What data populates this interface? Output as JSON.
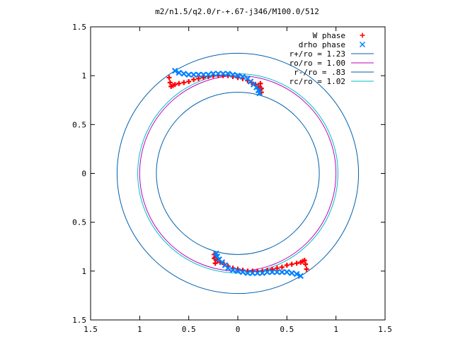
{
  "chart_data": {
    "type": "scatter",
    "title": "m2/n1.5/q2.0/r-+.67-j346/M100.0/512",
    "xlabel": "",
    "ylabel": "",
    "xlim": [
      -1.5,
      1.5
    ],
    "ylim": [
      -1.5,
      1.5
    ],
    "x_ticks": [
      -1.5,
      -1,
      -0.5,
      0,
      0.5,
      1,
      1.5
    ],
    "x_tick_labels": [
      "1.5",
      "1",
      "0.5",
      "0",
      "0.5",
      "1",
      "1.5"
    ],
    "y_ticks": [
      1.5,
      1,
      0.5,
      0,
      -0.5,
      -1,
      -1.5
    ],
    "y_tick_labels": [
      "1.5",
      "1",
      "0.5",
      "0",
      "0.5",
      "1",
      "1.5"
    ],
    "grid": false,
    "legend_position": "top-right",
    "series": [
      {
        "name": "W phase",
        "kind": "points",
        "marker": "plus",
        "color": "#ff0000",
        "x": [
          -0.7,
          -0.69,
          -0.68,
          -0.66,
          -0.64,
          -0.6,
          -0.55,
          -0.5,
          -0.45,
          -0.4,
          -0.35,
          -0.3,
          -0.25,
          -0.2,
          -0.15,
          -0.1,
          -0.05,
          0.0,
          0.05,
          0.1,
          0.14,
          0.18,
          0.21,
          0.23,
          0.24,
          0.24,
          0.23,
          0.7,
          0.69,
          0.68,
          0.66,
          0.64,
          0.6,
          0.55,
          0.5,
          0.45,
          0.4,
          0.35,
          0.3,
          0.25,
          0.2,
          0.15,
          0.1,
          0.05,
          0.0,
          -0.05,
          -0.1,
          -0.14,
          -0.18,
          -0.21,
          -0.23,
          -0.24,
          -0.24,
          -0.23
        ],
        "y": [
          0.98,
          0.93,
          0.89,
          0.9,
          0.91,
          0.92,
          0.93,
          0.94,
          0.96,
          0.97,
          0.98,
          0.99,
          1.0,
          1.0,
          1.0,
          1.0,
          0.99,
          0.98,
          0.97,
          0.95,
          0.93,
          0.91,
          0.89,
          0.86,
          0.83,
          0.87,
          0.92,
          -0.98,
          -0.93,
          -0.89,
          -0.9,
          -0.91,
          -0.92,
          -0.93,
          -0.94,
          -0.96,
          -0.97,
          -0.98,
          -0.99,
          -1.0,
          -1.0,
          -1.0,
          -1.0,
          -0.99,
          -0.98,
          -0.97,
          -0.95,
          -0.93,
          -0.91,
          -0.89,
          -0.86,
          -0.83,
          -0.87,
          -0.92
        ]
      },
      {
        "name": "drho phase",
        "kind": "points",
        "marker": "cross",
        "color": "#0080ff",
        "x": [
          -0.64,
          -0.6,
          -0.55,
          -0.5,
          -0.45,
          -0.4,
          -0.35,
          -0.3,
          -0.25,
          -0.2,
          -0.15,
          -0.1,
          -0.05,
          0.0,
          0.05,
          0.1,
          0.13,
          0.16,
          0.19,
          0.21,
          0.22,
          0.64,
          0.6,
          0.55,
          0.5,
          0.45,
          0.4,
          0.35,
          0.3,
          0.25,
          0.2,
          0.15,
          0.1,
          0.05,
          0.0,
          -0.05,
          -0.1,
          -0.13,
          -0.16,
          -0.19,
          -0.21,
          -0.22
        ],
        "y": [
          1.05,
          1.03,
          1.02,
          1.01,
          1.01,
          1.01,
          1.01,
          1.01,
          1.02,
          1.02,
          1.02,
          1.02,
          1.01,
          1.0,
          0.99,
          0.97,
          0.94,
          0.91,
          0.88,
          0.85,
          0.82,
          -1.05,
          -1.03,
          -1.02,
          -1.01,
          -1.01,
          -1.01,
          -1.01,
          -1.01,
          -1.02,
          -1.02,
          -1.02,
          -1.02,
          -1.01,
          -1.0,
          -0.99,
          -0.97,
          -0.94,
          -0.91,
          -0.88,
          -0.85,
          -0.82
        ]
      },
      {
        "name": "r+/ro = 1.23",
        "kind": "circle",
        "radius": 1.23,
        "color": "#0060ad"
      },
      {
        "name": "ro/ro = 1.00",
        "kind": "circle",
        "radius": 1.0,
        "color": "#c000c0"
      },
      {
        "name": "r-/ro = .83",
        "kind": "circle",
        "radius": 0.83,
        "color": "#0060ad"
      },
      {
        "name": "rc/ro = 1.02",
        "kind": "circle",
        "radius": 1.02,
        "color": "#00c0c0"
      }
    ]
  }
}
